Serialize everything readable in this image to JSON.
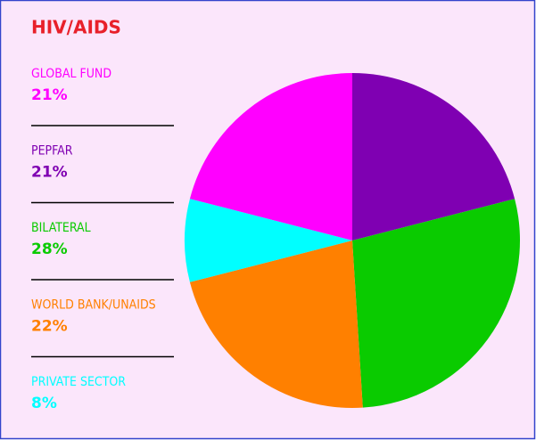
{
  "chart_data": {
    "type": "pie",
    "title": "HIV/AIDS",
    "categories": [
      "GLOBAL FUND",
      "PEPFAR",
      "BILATERAL",
      "WORLD BANK/UNAIDS",
      "PRIVATE SECTOR"
    ],
    "values": [
      21,
      21,
      28,
      22,
      8
    ],
    "value_labels": [
      "21%",
      "21%",
      "28%",
      "22%",
      "8%"
    ],
    "colors": [
      "#ff00ff",
      "#7f00b2",
      "#0acb00",
      "#ff8000",
      "#00ffff"
    ]
  }
}
